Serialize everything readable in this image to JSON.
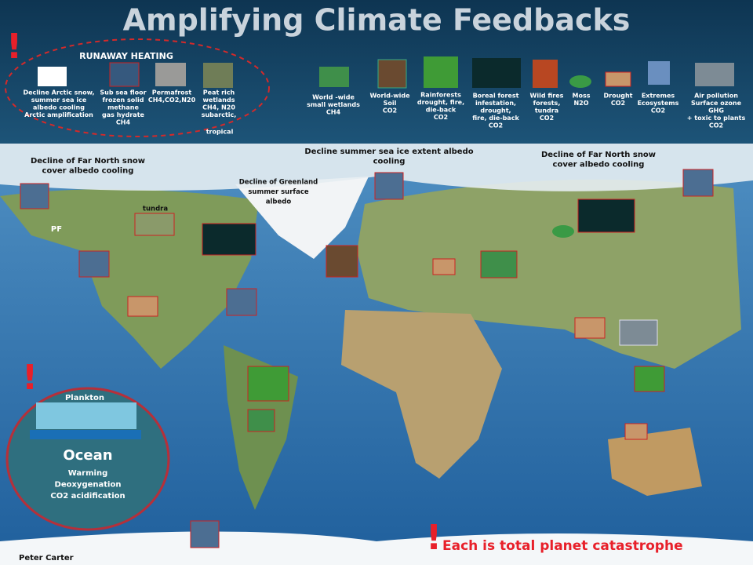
{
  "header": {
    "title": "Amplifying Climate Feedbacks"
  },
  "alerts": [
    "!",
    "!",
    "!"
  ],
  "runaway": {
    "title": "RUNAWAY HEATING",
    "items": [
      {
        "lines": [
          "Decline Arctic snow,",
          "summer sea ice",
          "albedo cooling",
          "Arctic amplification"
        ]
      },
      {
        "lines": [
          "Sub sea floor",
          "frozen solid",
          "methane",
          "gas hydrate",
          "CH4"
        ]
      },
      {
        "lines": [
          "Permafrost",
          "CH4,CO2,N20"
        ]
      },
      {
        "lines": [
          "Peat rich",
          "wetlands",
          "CH4, N20",
          "subarctic,"
        ]
      }
    ],
    "extra": "tropical"
  },
  "legend": [
    {
      "lines": [
        "World -wide",
        "small wetlands",
        "CH4"
      ]
    },
    {
      "lines": [
        "World-wide",
        "Soil",
        "CO2"
      ]
    },
    {
      "lines": [
        "Rainforests",
        "drought, fire,",
        "die-back",
        "CO2"
      ]
    },
    {
      "lines": [
        "Boreal forest",
        "infestation,",
        "drought,",
        "fire, die-back",
        "CO2"
      ]
    },
    {
      "lines": [
        "Wild fires",
        "forests,",
        "tundra",
        "CO2"
      ]
    },
    {
      "lines": [
        "Moss",
        "N2O"
      ]
    },
    {
      "lines": [
        "Drought",
        "CO2"
      ]
    },
    {
      "lines": [
        "Extremes",
        "Ecosystems",
        "CO2"
      ]
    },
    {
      "lines": [
        "Air pollution",
        "Surface ozone",
        "GHG",
        "+ toxic to plants",
        "CO2"
      ]
    }
  ],
  "map_labels": [
    {
      "lines": [
        "Decline of Far North snow",
        "cover albedo cooling"
      ]
    },
    {
      "lines": [
        "Decline summer sea ice extent   albedo",
        "cooling"
      ]
    },
    {
      "lines": [
        "Decline  of Greenland",
        "summer  surface",
        "albedo"
      ]
    },
    {
      "lines": [
        "Decline of Far North snow",
        "cover albedo cooling"
      ]
    },
    {
      "lines": [
        "tundra"
      ]
    },
    {
      "lines": [
        "PF"
      ]
    }
  ],
  "ocean": {
    "plankton": "Plankton",
    "title": "Ocean",
    "lines": [
      "Warming",
      "Deoxygenation",
      "CO2 acidification"
    ]
  },
  "footer": {
    "author": "Peter Carter",
    "warning": "Each is total planet catastrophe"
  }
}
